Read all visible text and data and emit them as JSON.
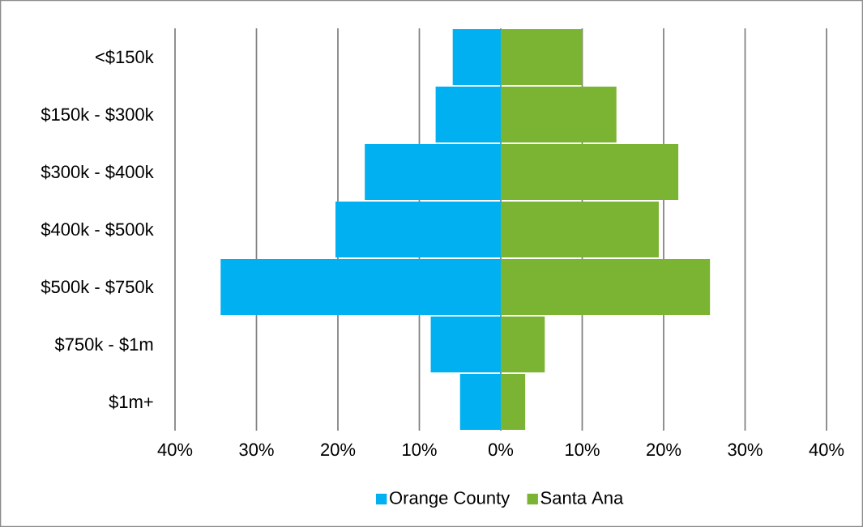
{
  "chart_data": {
    "type": "bar",
    "orientation": "horizontal",
    "categories": [
      "<$150k",
      "$150k - $300k",
      "$300k - $400k",
      "$400k - $500k",
      "$500k - $750k",
      "$750k - $1m",
      "$1m+"
    ],
    "series": [
      {
        "name": "Orange County",
        "color": "#00b0f0",
        "values": [
          -5.9,
          -8.0,
          -16.7,
          -20.3,
          -34.4,
          -8.6,
          -5.0
        ]
      },
      {
        "name": "Santa Ana",
        "color": "#7ab432",
        "values": [
          10.0,
          14.2,
          21.8,
          19.4,
          25.7,
          5.4,
          3.0
        ]
      }
    ],
    "xlim": [
      -40,
      40
    ],
    "xticks": [
      {
        "value": -40,
        "label": "40%"
      },
      {
        "value": -30,
        "label": "30%"
      },
      {
        "value": -20,
        "label": "20%"
      },
      {
        "value": -10,
        "label": "10%"
      },
      {
        "value": 0,
        "label": "0%"
      },
      {
        "value": 10,
        "label": "10%"
      },
      {
        "value": 20,
        "label": "20%"
      },
      {
        "value": 30,
        "label": "30%"
      },
      {
        "value": 40,
        "label": "40%"
      }
    ],
    "grid": "x",
    "legend": "bottom",
    "stacked": true
  }
}
